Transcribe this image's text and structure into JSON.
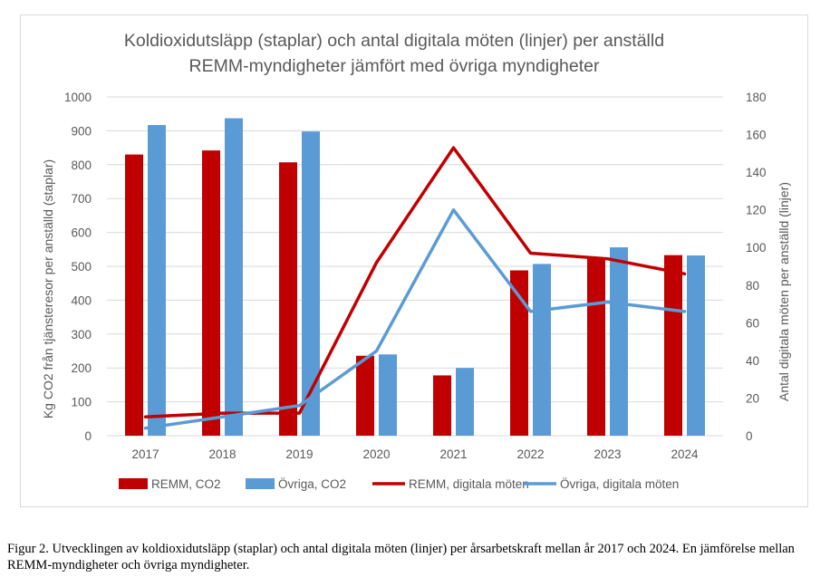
{
  "chart_data": {
    "type": "bar",
    "title": "Koldioxidutsläpp (staplar) och antal digitala möten (linjer) per anställd",
    "subtitle": "REMM-myndigheter jämfört med övriga myndigheter",
    "categories": [
      "2017",
      "2018",
      "2019",
      "2020",
      "2021",
      "2022",
      "2023",
      "2024"
    ],
    "ylabel": "Kg CO2 från tjänsteresor per anställd (staplar)",
    "y2label": "Antal digitala möten per anställd (linjer)",
    "ylim": [
      0,
      1000
    ],
    "y2lim": [
      0,
      180
    ],
    "yticks": [
      "0",
      "100",
      "200",
      "300",
      "400",
      "500",
      "600",
      "700",
      "800",
      "900",
      "1000"
    ],
    "y2ticks": [
      "0",
      "20",
      "40",
      "60",
      "80",
      "100",
      "120",
      "140",
      "160",
      "180"
    ],
    "grid": true,
    "legend_position": "bottom",
    "bar_series": [
      {
        "name": "REMM, CO2",
        "color": "#c00000",
        "values": [
          830,
          842,
          807,
          236,
          178,
          488,
          526,
          533
        ]
      },
      {
        "name": "Övriga, CO2",
        "color": "#5b9bd5",
        "values": [
          917,
          937,
          898,
          240,
          200,
          507,
          556,
          532
        ]
      }
    ],
    "line_series": [
      {
        "name": "REMM, digitala möten",
        "color": "#c00000",
        "axis": "right",
        "values": [
          10,
          12,
          12,
          92,
          153,
          97,
          94,
          86
        ]
      },
      {
        "name": "Övriga, digitala möten",
        "color": "#5b9bd5",
        "axis": "right",
        "values": [
          4,
          10,
          16,
          45,
          120,
          66,
          71,
          66
        ]
      }
    ]
  },
  "caption": "Figur 2. Utvecklingen av koldioxidutsläpp (staplar) och antal digitala möten (linjer) per årsarbetskraft mellan år 2017 och 2024. En jämförelse mellan REMM-myndigheter och övriga myndigheter."
}
